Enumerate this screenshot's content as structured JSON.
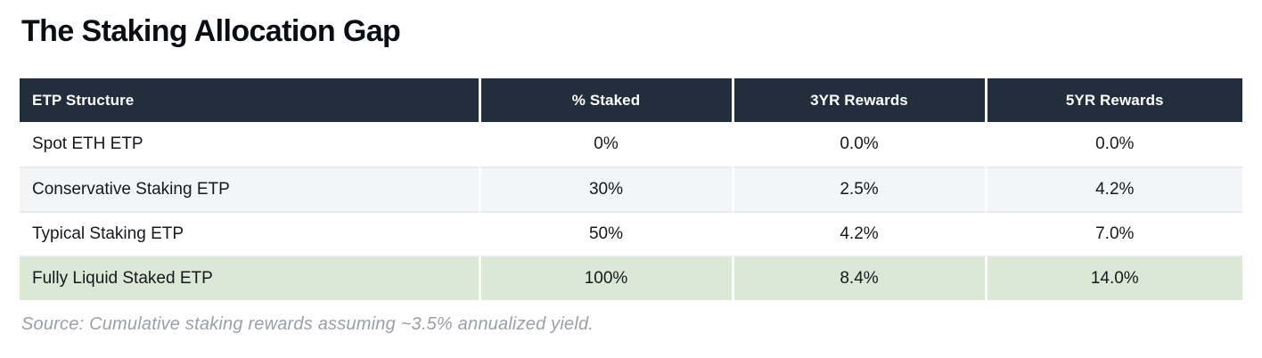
{
  "title": "The Staking Allocation Gap",
  "source_note": "Source: Cumulative staking rewards assuming ~3.5% annualized yield.",
  "chart_data": {
    "type": "table",
    "title": "The Staking Allocation Gap",
    "columns": [
      "ETP Structure",
      "% Staked",
      "3YR Rewards",
      "5YR Rewards"
    ],
    "rows": [
      {
        "structure": "Spot ETH ETP",
        "staked": "0%",
        "rewards_3yr": "0.0%",
        "rewards_5yr": "0.0%",
        "highlight": false
      },
      {
        "structure": "Conservative Staking ETP",
        "staked": "30%",
        "rewards_3yr": "2.5%",
        "rewards_5yr": "4.2%",
        "highlight": false
      },
      {
        "structure": "Typical Staking ETP",
        "staked": "50%",
        "rewards_3yr": "4.2%",
        "rewards_5yr": "7.0%",
        "highlight": false
      },
      {
        "structure": "Fully Liquid Staked ETP",
        "staked": "100%",
        "rewards_3yr": "8.4%",
        "rewards_5yr": "14.0%",
        "highlight": true
      }
    ],
    "fields": [
      "structure",
      "staked",
      "rewards_3yr",
      "rewards_5yr"
    ],
    "annotation": "Cumulative staking rewards assuming ~3.5% annualized yield",
    "numeric": {
      "staked_pct": [
        0,
        30,
        50,
        100
      ],
      "rewards_3yr_pct": [
        0.0,
        2.5,
        4.2,
        8.4
      ],
      "rewards_5yr_pct": [
        0.0,
        4.2,
        7.0,
        14.0
      ]
    }
  },
  "colors": {
    "header_bg": "#232e3c",
    "header_text": "#ffffff",
    "highlight_row_bg": "#dce8d6",
    "alt_row_bg": "#f4f5f7",
    "row_border": "#e9ebee",
    "body_text": "#15181c",
    "title_text": "#0a0d11",
    "source_text": "#9b9fa6",
    "page_bg": "#ffffff"
  },
  "layout": {
    "column_widths_pct": [
      "37.5%",
      "20.7%",
      "20.7%",
      "21.1%"
    ]
  }
}
